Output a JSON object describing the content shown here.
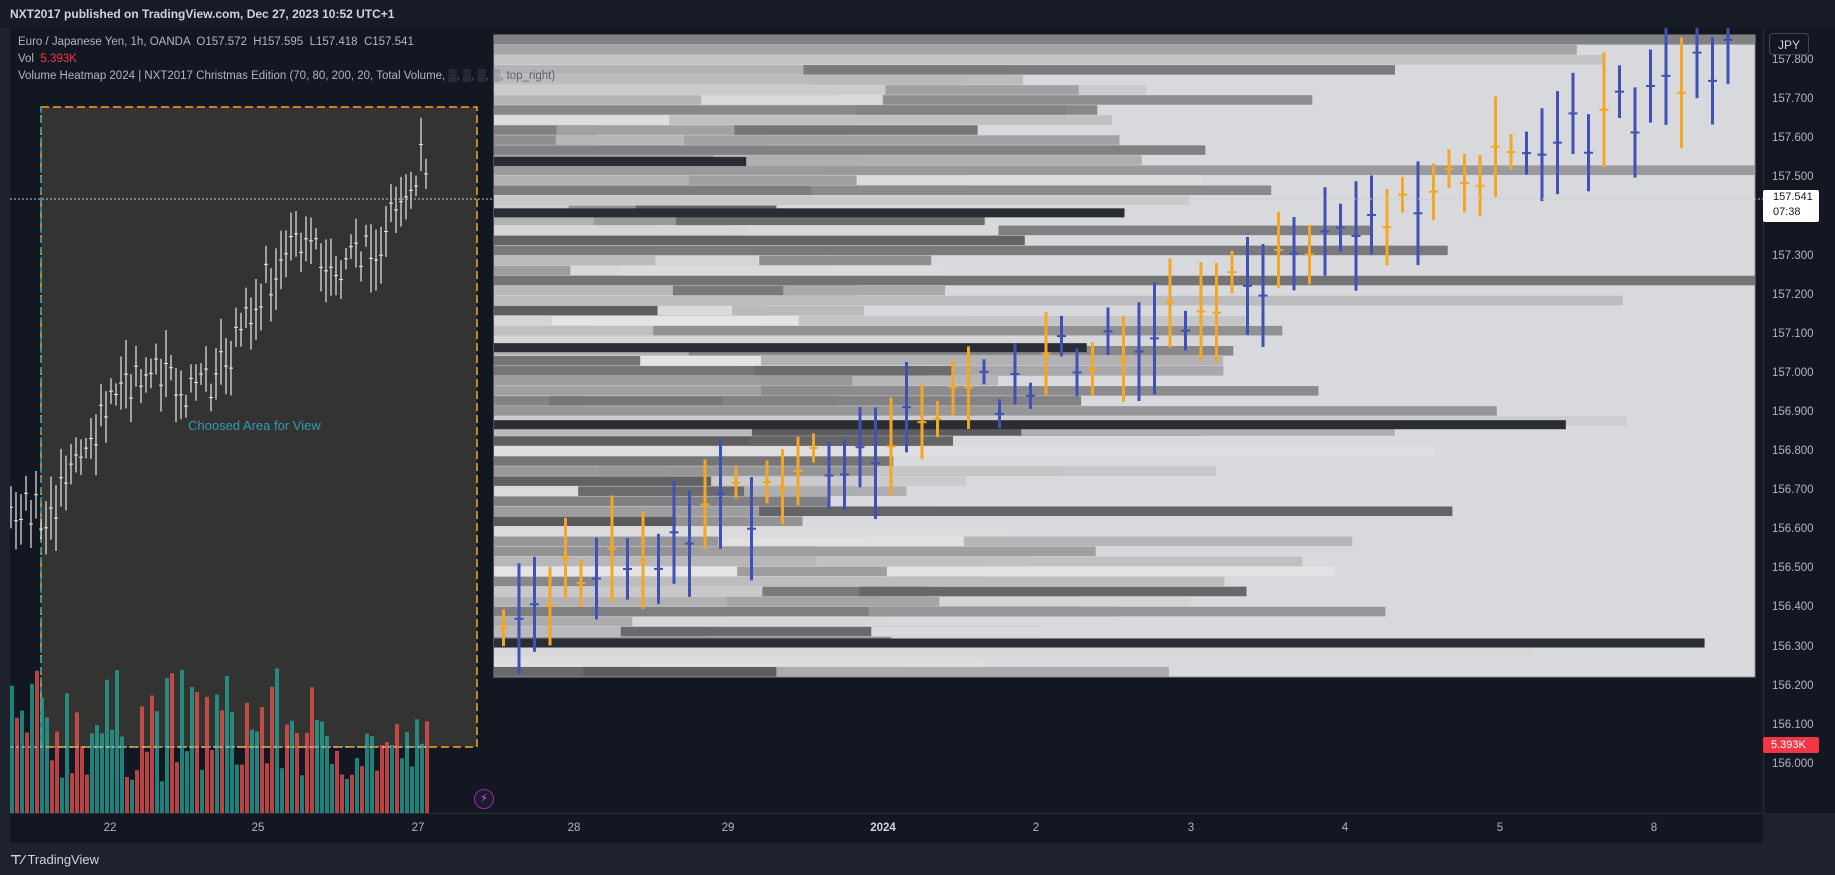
{
  "header": {
    "publish_line": "NXT2017 published on TradingView.com, Dec 27, 2023 10:52 UTC+1"
  },
  "legend": {
    "symbol": "Euro / Japanese Yen, 1h, OANDA",
    "open_label": "O",
    "open": "157.572",
    "high_label": "H",
    "high": "157.595",
    "low_label": "L",
    "low": "157.418",
    "close_label": "C",
    "close": "157.541",
    "vol_label": "Vol",
    "vol_value": "5.393K",
    "indicator": "Volume Heatmap 2024 | NXT2017 Christmas Edition (70, 80, 200, 20, Total Volume,",
    "indicator_tail": "▒, ▒, ▒, ▒, top_right)"
  },
  "area_label": "Choosed Area for View",
  "currency_button": "JPY",
  "price_axis": {
    "ticks": [
      "157.800",
      "157.700",
      "157.600",
      "157.500",
      "157.400",
      "157.300",
      "157.200",
      "157.100",
      "157.000",
      "156.900",
      "156.800",
      "156.700",
      "156.600",
      "156.500",
      "156.400",
      "156.300",
      "156.200",
      "156.100",
      "156.000"
    ],
    "current_price": "157.541",
    "countdown": "07:38",
    "volume_badge": "5.393K"
  },
  "time_axis": {
    "ticks": [
      {
        "label": "22",
        "bold": false
      },
      {
        "label": "25",
        "bold": false
      },
      {
        "label": "27",
        "bold": false
      },
      {
        "label": "28",
        "bold": false
      },
      {
        "label": "29",
        "bold": false
      },
      {
        "label": "2024",
        "bold": true
      },
      {
        "label": "2",
        "bold": false
      },
      {
        "label": "3",
        "bold": false
      },
      {
        "label": "4",
        "bold": false
      },
      {
        "label": "5",
        "bold": false
      },
      {
        "label": "8",
        "bold": false
      }
    ]
  },
  "footer": {
    "brand": "TradingView"
  },
  "colors": {
    "bg": "#131722",
    "up_volume": "#26a69a",
    "down_volume": "#ef5350",
    "proj_up": "#3f51b5",
    "proj_down": "#f5a623",
    "area_fill": "#3a3a34",
    "area_border_cyan": "#26a0b8",
    "area_border_orange": "#f5a623"
  }
}
